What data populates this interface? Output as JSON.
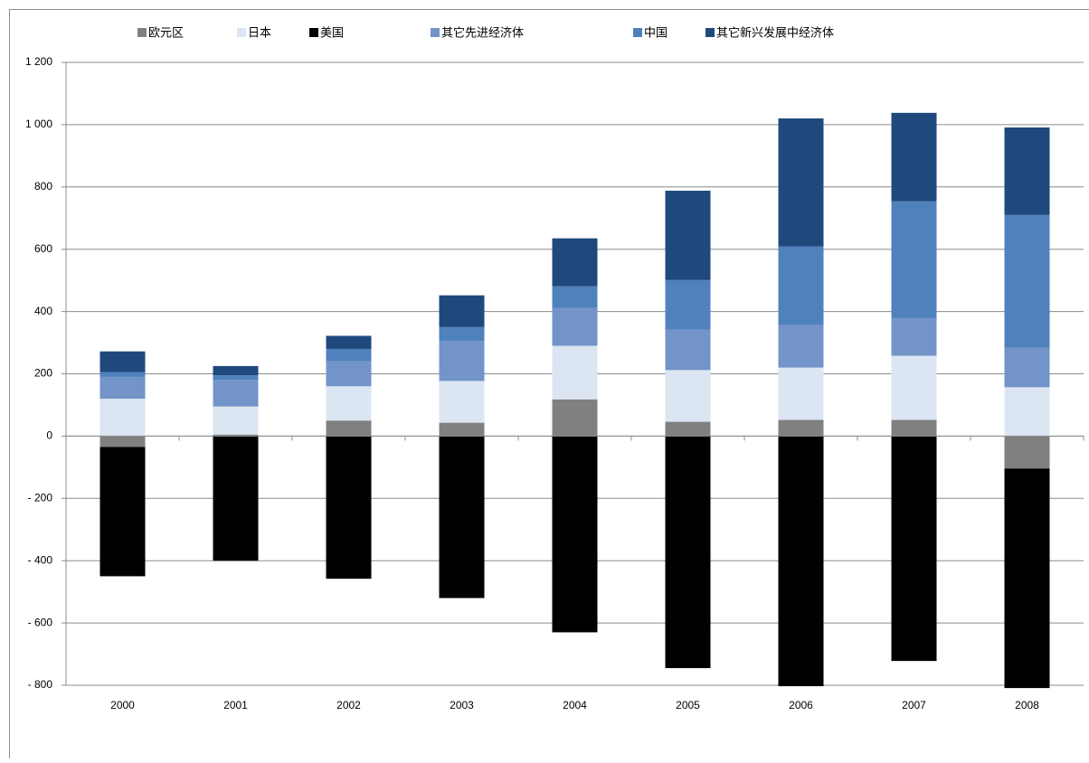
{
  "chart_data": {
    "type": "bar",
    "stacked": true,
    "categories": [
      "2000",
      "2001",
      "2002",
      "2003",
      "2004",
      "2005",
      "2006",
      "2007",
      "2008"
    ],
    "series": [
      {
        "name": "欧元区",
        "color": "#808080",
        "values": [
          -35,
          5,
          50,
          43,
          118,
          46,
          52,
          52,
          -104
        ]
      },
      {
        "name": "日本",
        "color": "#dce6f2",
        "values": [
          120,
          90,
          110,
          134,
          172,
          166,
          168,
          206,
          157
        ]
      },
      {
        "name": "美国",
        "color": "#000000",
        "values": [
          -415,
          -400,
          -458,
          -520,
          -630,
          -745,
          -803,
          -722,
          -705
        ]
      },
      {
        "name": "其它先进经济体",
        "color": "#7394c8",
        "values": [
          70,
          85,
          80,
          128,
          122,
          130,
          137,
          122,
          127
        ]
      },
      {
        "name": "中国",
        "color": "#4f81bd",
        "values": [
          15,
          15,
          40,
          45,
          69,
          159,
          252,
          374,
          426
        ]
      },
      {
        "name": "其它新兴发展中经济体",
        "color": "#1f497d",
        "values": [
          67,
          30,
          42,
          102,
          154,
          287,
          411,
          284,
          281
        ]
      }
    ],
    "ylim": [
      -800,
      1200
    ],
    "yticks": [
      {
        "value": -800,
        "label": "- 800"
      },
      {
        "value": -600,
        "label": "- 600"
      },
      {
        "value": -400,
        "label": "- 400"
      },
      {
        "value": -200,
        "label": "- 200"
      },
      0,
      200,
      400,
      600,
      800,
      {
        "value": 1000,
        "label": "1 000"
      },
      {
        "value": 1200,
        "label": "1 200"
      }
    ],
    "grid": true
  }
}
